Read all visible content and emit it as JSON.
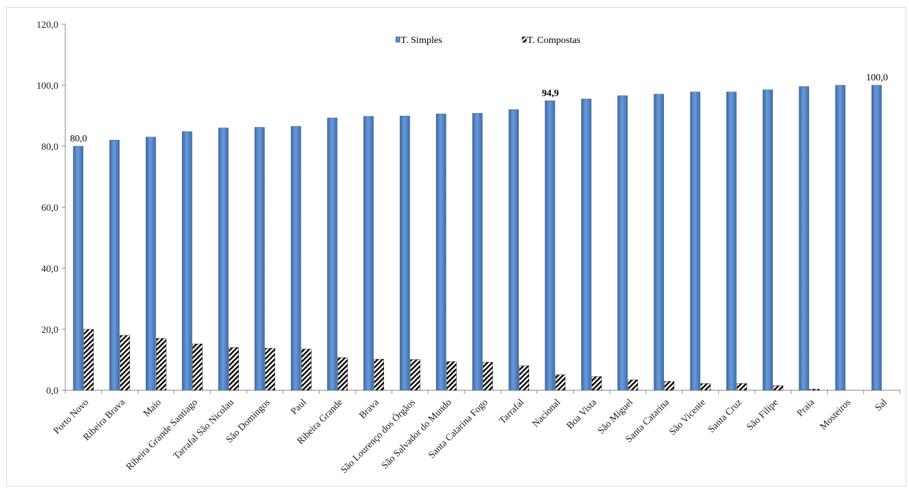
{
  "chart_data": {
    "type": "bar",
    "categories": [
      "Porto Novo",
      "Ribeira Brava",
      "Maio",
      "Ribeira Grande Santiago",
      "Tarrafal São Nicolau",
      "São Domingos",
      "Paul",
      "Ribeira Grande",
      "Brava",
      "São Lourenço dos Órgãos",
      "São Salvador do Mundo",
      "Santa Catarina Fogo",
      "Tarrafal",
      "Nacional",
      "Boa Vista",
      "São Miguel",
      "Santa Catarina",
      "São Vicente",
      "Santa Cruz",
      "São Filipe",
      "Praia",
      "Mosteiros",
      "Sal"
    ],
    "series": [
      {
        "name": "T. Simples",
        "color": "#4f81bd",
        "values": [
          80.0,
          82.0,
          83.0,
          84.8,
          86.0,
          86.2,
          86.5,
          89.3,
          89.8,
          89.9,
          90.6,
          90.8,
          92.0,
          94.9,
          95.5,
          96.6,
          97.1,
          97.8,
          97.8,
          98.5,
          99.6,
          100.0,
          100.0
        ]
      },
      {
        "name": "T. Compostas",
        "pattern": "diagonal-hatch",
        "values": [
          20.0,
          18.0,
          17.0,
          15.2,
          14.0,
          13.8,
          13.5,
          10.7,
          10.2,
          10.1,
          9.4,
          9.2,
          8.0,
          5.1,
          4.5,
          3.4,
          2.9,
          2.2,
          2.2,
          1.5,
          0.4,
          0.0,
          0.0
        ]
      }
    ],
    "data_labels": [
      {
        "category": "Porto Novo",
        "series": "T. Simples",
        "text": "80,0",
        "bold": false
      },
      {
        "category": "Nacional",
        "series": "T. Simples",
        "text": "94,9",
        "bold": true
      },
      {
        "category": "Sal",
        "series": "T. Simples",
        "text": "100,0",
        "bold": false
      }
    ],
    "y_ticks": [
      "0,0",
      "20,0",
      "40,0",
      "60,0",
      "80,0",
      "100,0",
      "120,0"
    ],
    "ylim": [
      0,
      120
    ],
    "title": "",
    "xlabel": "",
    "ylabel": "",
    "legend_position": "top-center",
    "grid": false
  }
}
